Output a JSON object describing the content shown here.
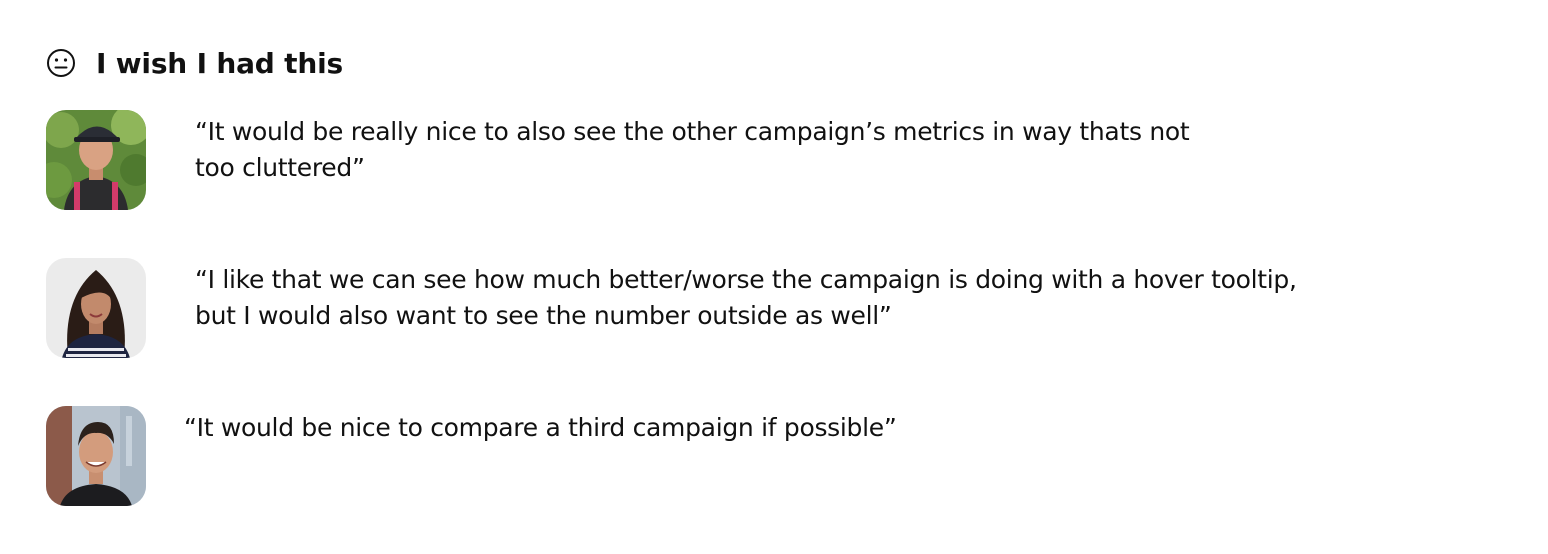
{
  "section": {
    "icon": "neutral-face-icon",
    "title": "I wish I had this"
  },
  "quotes": [
    {
      "avatar": "user-avatar",
      "lines": [
        "“It would be really nice to also see the other campaign’s metrics in way thats not",
        "too cluttered”"
      ]
    },
    {
      "avatar": "user-avatar",
      "lines": [
        "“I like that we can see how much better/worse the campaign is doing with a hover tooltip,",
        "but I would also want to see the number outside as well”"
      ]
    },
    {
      "avatar": "user-avatar",
      "lines": [
        "“It would be nice to compare a third campaign if possible”"
      ]
    }
  ],
  "colors": {
    "text": "#111111",
    "background": "#ffffff"
  }
}
